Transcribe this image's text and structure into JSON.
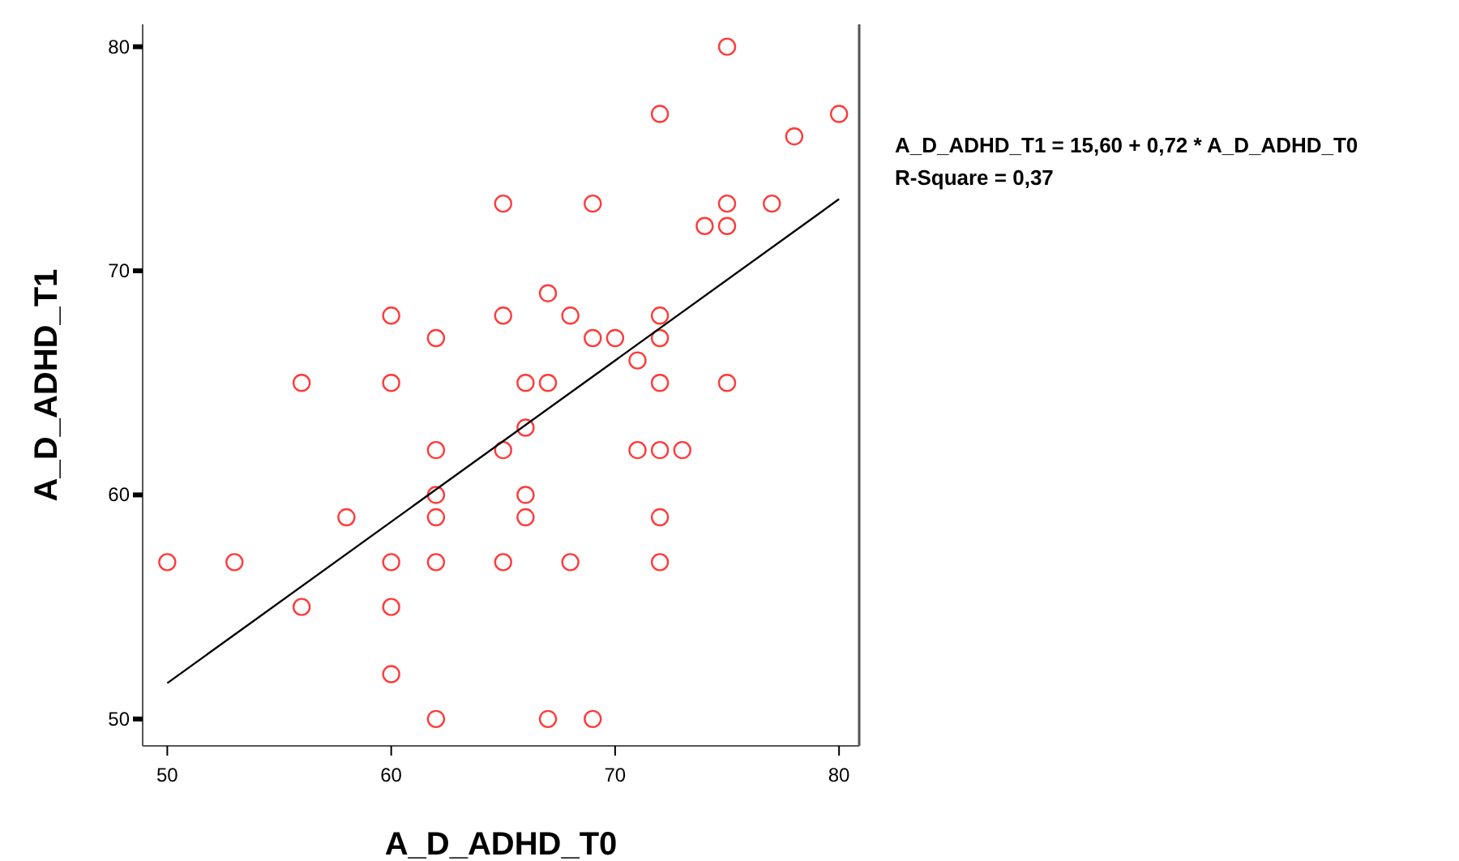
{
  "chart_data": {
    "type": "scatter",
    "xlabel": "A_D_ADHD_T0",
    "ylabel": "A_D_ADHD_T1",
    "xlim": [
      48.9,
      80.9
    ],
    "ylim": [
      48.8,
      81
    ],
    "xticks": [
      50,
      60,
      70,
      80
    ],
    "yticks": [
      50,
      60,
      70,
      80
    ],
    "annotations": [
      "A_D_ADHD_T1 = 15,60 + 0,72 * A_D_ADHD_T0",
      "R-Square = 0,37"
    ],
    "series": [
      {
        "marker": "circle",
        "color": "#ff3b3b",
        "x": [
          50,
          53,
          56,
          56,
          58,
          60,
          60,
          60,
          60,
          60,
          62,
          62,
          62,
          62,
          62,
          62,
          65,
          65,
          65,
          65,
          66,
          66,
          66,
          66,
          67,
          67,
          67,
          68,
          68,
          69,
          69,
          69,
          70,
          71,
          71,
          72,
          72,
          72,
          72,
          72,
          72,
          72,
          73,
          74,
          75,
          75,
          75,
          75,
          77,
          78,
          80
        ],
        "values": [
          57,
          57,
          65,
          55,
          59,
          68,
          65,
          57,
          55,
          52,
          67,
          62,
          60,
          59,
          57,
          50,
          73,
          68,
          62,
          57,
          65,
          63,
          60,
          59,
          69,
          65,
          50,
          68,
          57,
          73,
          67,
          50,
          67,
          66,
          62,
          77,
          68,
          67,
          65,
          62,
          59,
          57,
          62,
          72,
          80,
          73,
          72,
          65,
          73,
          76,
          77
        ]
      },
      {
        "type": "line",
        "marker": "none",
        "color": "#000000",
        "x": [
          50,
          80
        ],
        "values": [
          51.6,
          73.2
        ]
      }
    ]
  }
}
